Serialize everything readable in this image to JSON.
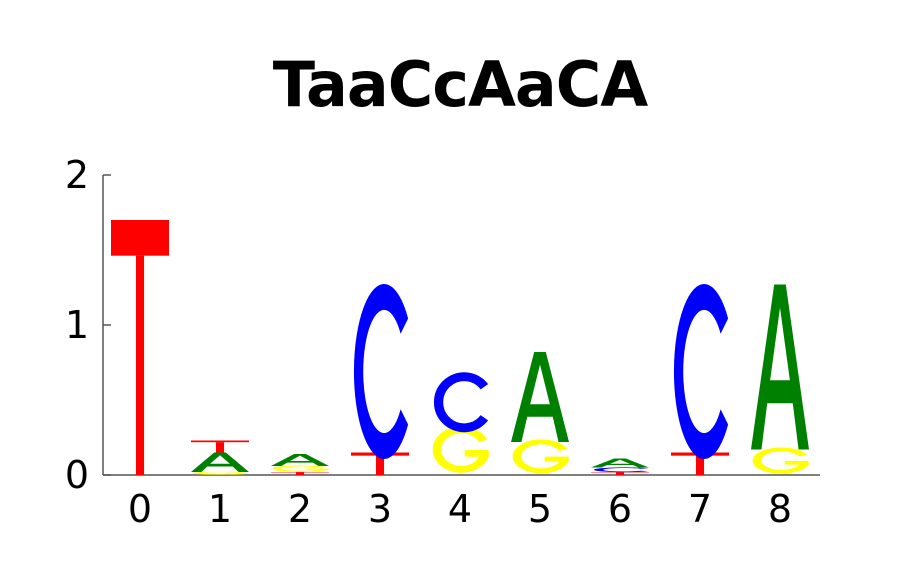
{
  "title": "TaaCcAaCA",
  "chart_data": {
    "type": "sequence-logo",
    "title": "TaaCcAaCA",
    "xlabel": "",
    "ylabel": "",
    "ylim": [
      0,
      2
    ],
    "y_ticks": [
      "0",
      "1",
      "2"
    ],
    "categories": [
      "0",
      "1",
      "2",
      "3",
      "4",
      "5",
      "6",
      "7",
      "8"
    ],
    "colors": {
      "A": "#008000",
      "C": "#0000ff",
      "G": "#ffff00",
      "T": "#ff0000"
    },
    "positions": [
      {
        "position": "0",
        "stack": [
          {
            "letter": "T",
            "height": 1.7
          }
        ]
      },
      {
        "position": "1",
        "stack": [
          {
            "letter": "G",
            "height": 0.02
          },
          {
            "letter": "A",
            "height": 0.13
          },
          {
            "letter": "T",
            "height": 0.08
          }
        ]
      },
      {
        "position": "2",
        "stack": [
          {
            "letter": "T",
            "height": 0.02
          },
          {
            "letter": "G",
            "height": 0.04
          },
          {
            "letter": "A",
            "height": 0.08
          }
        ]
      },
      {
        "position": "3",
        "stack": [
          {
            "letter": "T",
            "height": 0.15
          },
          {
            "letter": "C",
            "height": 1.08
          }
        ]
      },
      {
        "position": "4",
        "stack": [
          {
            "letter": "G",
            "height": 0.3
          },
          {
            "letter": "C",
            "height": 0.37
          }
        ]
      },
      {
        "position": "5",
        "stack": [
          {
            "letter": "G",
            "height": 0.22
          },
          {
            "letter": "A",
            "height": 0.6
          }
        ]
      },
      {
        "position": "6",
        "stack": [
          {
            "letter": "T",
            "height": 0.02
          },
          {
            "letter": "C",
            "height": 0.03
          },
          {
            "letter": "A",
            "height": 0.06
          }
        ]
      },
      {
        "position": "7",
        "stack": [
          {
            "letter": "T",
            "height": 0.15
          },
          {
            "letter": "C",
            "height": 1.08
          }
        ]
      },
      {
        "position": "8",
        "stack": [
          {
            "letter": "G",
            "height": 0.17
          },
          {
            "letter": "A",
            "height": 1.1
          }
        ]
      }
    ]
  }
}
